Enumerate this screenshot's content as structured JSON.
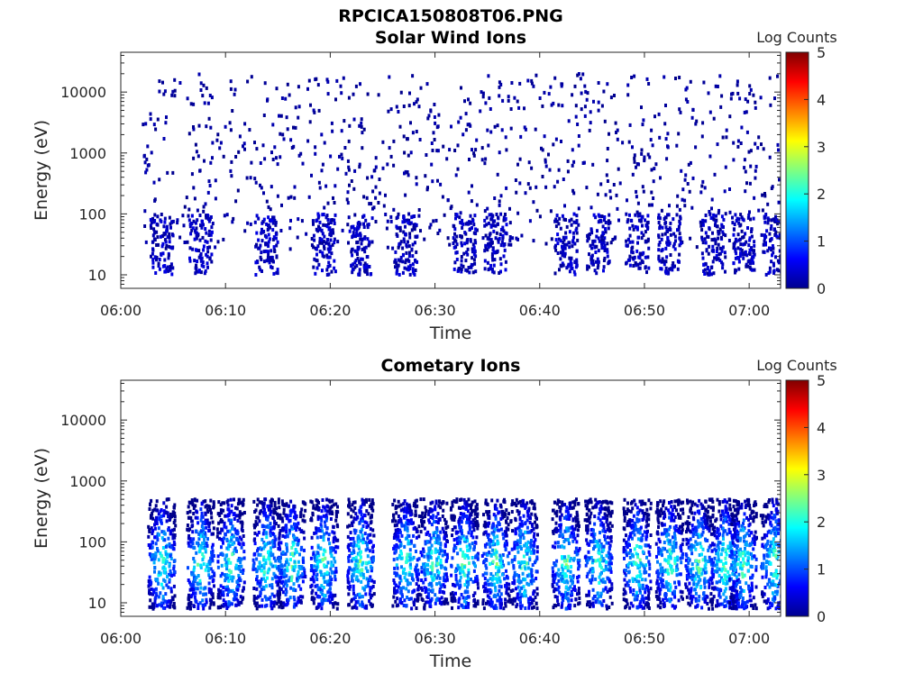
{
  "figure_title": "RPCICA150808T06.PNG",
  "colorbar": {
    "label": "Log Counts",
    "range": [
      0,
      5
    ],
    "ticks": [
      "0",
      "1",
      "2",
      "3",
      "4",
      "5"
    ]
  },
  "chart_data": [
    {
      "type": "heatmap",
      "title": "Solar Wind Ions",
      "xlabel": "Time",
      "ylabel": "Energy (eV)",
      "x_ticks": [
        "06:00",
        "06:10",
        "06:20",
        "06:30",
        "06:40",
        "06:50",
        "07:00"
      ],
      "y_ticks": [
        "10",
        "100",
        "1000",
        "10000"
      ],
      "x_range_minutes": [
        0,
        63
      ],
      "y_range_eV": [
        6,
        45000
      ],
      "y_scale": "log",
      "colormap": "jet",
      "color_range_log_counts": [
        0,
        5
      ],
      "pulse_centers_minutes": [
        3.8,
        7.5,
        13.8,
        19.3,
        22.8,
        27.1,
        32.7,
        35.7,
        42.4,
        45.5,
        49.2,
        52.3,
        56.5,
        59.3,
        62.3
      ],
      "description": "sparse counts, mostly log counts 0-0.5, scattered 6-30000 eV with denser bands at 10-100 eV aligned with pulses"
    },
    {
      "type": "heatmap",
      "title": "Cometary Ions",
      "xlabel": "Time",
      "ylabel": "Energy (eV)",
      "x_ticks": [
        "06:00",
        "06:10",
        "06:20",
        "06:30",
        "06:40",
        "06:50",
        "07:00"
      ],
      "y_ticks": [
        "10",
        "100",
        "1000",
        "10000"
      ],
      "x_range_minutes": [
        0,
        63
      ],
      "y_range_eV": [
        6,
        45000
      ],
      "y_scale": "log",
      "colormap": "jet",
      "color_range_log_counts": [
        0,
        5
      ],
      "pulse_centers_minutes": [
        3.8,
        7.5,
        10.4,
        13.8,
        16.2,
        19.3,
        22.8,
        27.1,
        29.8,
        32.7,
        35.7,
        38.4,
        42.4,
        45.5,
        49.2,
        52.3,
        55.1,
        57.6,
        59.3,
        62.3
      ],
      "peak_log_counts": 2.6,
      "description": "periodic vertical bursts of ions from ~8 to ~500 eV, brightest near 30-60 eV"
    }
  ]
}
